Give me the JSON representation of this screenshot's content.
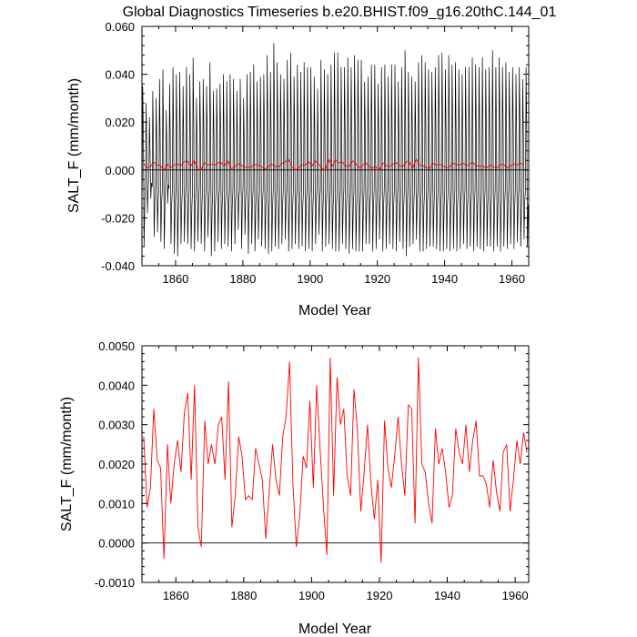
{
  "chart_data": [
    {
      "type": "line",
      "title": "Global Diagnostics Timeseries b.e20.BHIST.f09_g16.20thC.144_01",
      "xlabel": "Model Year",
      "ylabel": "SALT_F (mm/month)",
      "xlim": [
        1850,
        1965
      ],
      "ylim": [
        -0.04,
        0.06
      ],
      "xticks": [
        1860,
        1880,
        1900,
        1920,
        1940,
        1960
      ],
      "xtick_labels": [
        "1860",
        "1880",
        "1900",
        "1920",
        "1940",
        "1960"
      ],
      "yticks": [
        -0.04,
        -0.02,
        0.0,
        0.02,
        0.04,
        0.06
      ],
      "ytick_labels": [
        "-0.040",
        "-0.020",
        "0.000",
        "0.020",
        "0.040",
        "0.060"
      ],
      "zero_line": true,
      "series": [
        {
          "type": "monthly",
          "color": "#000000",
          "seasonal_peaks": [
            0.035,
            0.028,
            0.022,
            0.033,
            0.03,
            0.038,
            0.042,
            0.025,
            0.036,
            0.043,
            0.04,
            0.041,
            0.035,
            0.043,
            0.04,
            0.047,
            0.03,
            0.037,
            0.038,
            0.035,
            0.045,
            0.033,
            0.034,
            0.036,
            0.04,
            0.037,
            0.04,
            0.038,
            0.033,
            0.038,
            0.03,
            0.04,
            0.041,
            0.044,
            0.037,
            0.039,
            0.04,
            0.048,
            0.041,
            0.053,
            0.045,
            0.04,
            0.038,
            0.046,
            0.049,
            0.039,
            0.044,
            0.041,
            0.045,
            0.043,
            0.043,
            0.039,
            0.034,
            0.046,
            0.042,
            0.04,
            0.044,
            0.049,
            0.049,
            0.043,
            0.043,
            0.047,
            0.043,
            0.048,
            0.046,
            0.046,
            0.037,
            0.039,
            0.044,
            0.044,
            0.036,
            0.043,
            0.044,
            0.039,
            0.044,
            0.044,
            0.037,
            0.043,
            0.05,
            0.041,
            0.039,
            0.037,
            0.045,
            0.048,
            0.045,
            0.042,
            0.041,
            0.043,
            0.048,
            0.049,
            0.042,
            0.048,
            0.044,
            0.045,
            0.042,
            0.04,
            0.043,
            0.043,
            0.047,
            0.044,
            0.043,
            0.047,
            0.042,
            0.043,
            0.05,
            0.043,
            0.047,
            0.043,
            0.045,
            0.041,
            0.043,
            0.04,
            0.043,
            0.038,
            0.043
          ],
          "seasonal_troughs": [
            -0.032,
            -0.018,
            -0.012,
            -0.028,
            -0.026,
            -0.03,
            -0.033,
            -0.014,
            -0.031,
            -0.035,
            -0.036,
            -0.031,
            -0.03,
            -0.031,
            -0.033,
            -0.034,
            -0.03,
            -0.031,
            -0.034,
            -0.028,
            -0.036,
            -0.034,
            -0.03,
            -0.033,
            -0.031,
            -0.032,
            -0.034,
            -0.031,
            -0.025,
            -0.033,
            -0.027,
            -0.035,
            -0.031,
            -0.034,
            -0.029,
            -0.032,
            -0.033,
            -0.035,
            -0.034,
            -0.032,
            -0.033,
            -0.031,
            -0.029,
            -0.034,
            -0.033,
            -0.031,
            -0.033,
            -0.032,
            -0.034,
            -0.033,
            -0.034,
            -0.031,
            -0.027,
            -0.034,
            -0.032,
            -0.031,
            -0.033,
            -0.034,
            -0.034,
            -0.031,
            -0.033,
            -0.035,
            -0.033,
            -0.034,
            -0.034,
            -0.034,
            -0.031,
            -0.031,
            -0.034,
            -0.033,
            -0.029,
            -0.034,
            -0.033,
            -0.031,
            -0.033,
            -0.034,
            -0.03,
            -0.033,
            -0.036,
            -0.032,
            -0.031,
            -0.029,
            -0.034,
            -0.034,
            -0.033,
            -0.032,
            -0.032,
            -0.033,
            -0.034,
            -0.034,
            -0.033,
            -0.034,
            -0.033,
            -0.034,
            -0.033,
            -0.031,
            -0.033,
            -0.032,
            -0.034,
            -0.032,
            -0.033,
            -0.034,
            -0.032,
            -0.032,
            -0.034,
            -0.032,
            -0.034,
            -0.032,
            -0.033,
            -0.031,
            -0.033,
            -0.03,
            -0.032,
            -0.029,
            -0.032
          ]
        },
        {
          "type": "annual",
          "color": "#ff0000",
          "source": "annual_means"
        }
      ]
    },
    {
      "type": "line",
      "xlabel": "Model Year",
      "ylabel": "SALT_F (mm/month)",
      "xlim": [
        1850,
        1964
      ],
      "ylim": [
        -0.001,
        0.005
      ],
      "xticks": [
        1860,
        1880,
        1900,
        1920,
        1940,
        1960
      ],
      "xtick_labels": [
        "1860",
        "1880",
        "1900",
        "1920",
        "1940",
        "1960"
      ],
      "yticks": [
        -0.001,
        0.0,
        0.001,
        0.002,
        0.003,
        0.004,
        0.005
      ],
      "ytick_labels": [
        "-0.0010",
        "0.0000",
        "0.0010",
        "0.0020",
        "0.0030",
        "0.0040",
        "0.0050"
      ],
      "zero_line": true,
      "series": [
        {
          "type": "annual",
          "color": "#ff0000",
          "x_start": 1850.5,
          "x_step": 1,
          "values": [
            0.0027,
            0.0009,
            0.0014,
            0.0034,
            0.0021,
            0.0019,
            -0.0004,
            0.0025,
            0.001,
            0.002,
            0.0026,
            0.0018,
            0.0033,
            0.0038,
            0.0016,
            0.004,
            0.0004,
            -0.0001,
            0.0031,
            0.002,
            0.0025,
            0.002,
            0.003,
            0.0032,
            0.0016,
            0.0041,
            0.0004,
            0.0012,
            0.0027,
            0.0022,
            0.0011,
            0.0012,
            0.0011,
            0.0024,
            0.002,
            0.0016,
            0.0001,
            0.0013,
            0.0025,
            0.0016,
            0.0012,
            0.0027,
            0.0032,
            0.0046,
            0.0015,
            -0.0001,
            0.0007,
            0.0022,
            0.0019,
            0.0036,
            0.0014,
            0.004,
            0.0024,
            0.0009,
            -0.0003,
            0.0047,
            0.0012,
            0.0042,
            0.003,
            0.0034,
            0.0017,
            0.0012,
            0.0039,
            0.0029,
            0.0008,
            0.0018,
            0.003,
            0.0015,
            0.0006,
            0.0016,
            -0.0005,
            0.0031,
            0.0019,
            0.0014,
            0.0022,
            0.0032,
            0.002,
            0.0012,
            0.0035,
            0.0034,
            0.0005,
            0.0047,
            0.002,
            0.0018,
            0.001,
            0.0005,
            0.0029,
            0.002,
            0.0024,
            0.0018,
            0.0009,
            0.0012,
            0.0029,
            0.0023,
            0.002,
            0.003,
            0.0018,
            0.0026,
            0.0031,
            0.0017,
            0.0017,
            0.0015,
            0.0009,
            0.0021,
            0.0013,
            0.0008,
            0.0023,
            0.0025,
            0.0008,
            0.0016,
            0.0026,
            0.002,
            0.0028,
            0.0023
          ]
        }
      ]
    }
  ]
}
